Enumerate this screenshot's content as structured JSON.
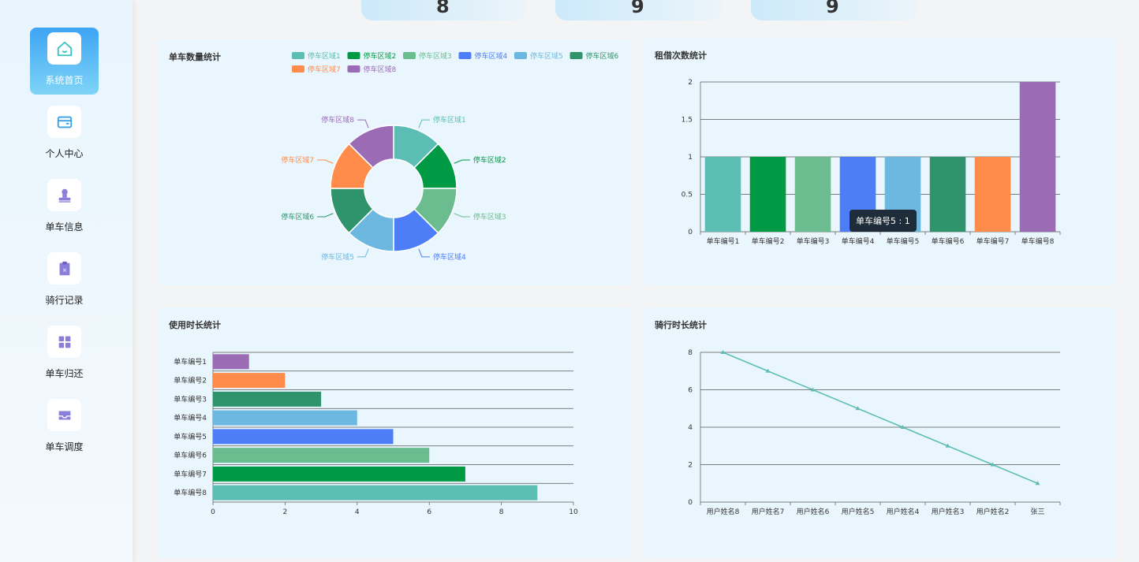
{
  "sidebar": {
    "items": [
      {
        "label": "系统首页",
        "icon": "home-icon",
        "active": true
      },
      {
        "label": "个人中心",
        "icon": "wallet-icon",
        "active": false
      },
      {
        "label": "单车信息",
        "icon": "stamp-icon",
        "active": false
      },
      {
        "label": "骑行记录",
        "icon": "clipboard-icon",
        "active": false
      },
      {
        "label": "单车归还",
        "icon": "grid-icon",
        "active": false
      },
      {
        "label": "单车调度",
        "icon": "inbox-icon",
        "active": false
      }
    ]
  },
  "top_stats": [
    "8",
    "9",
    "9"
  ],
  "colors": {
    "primary": "#5bbdb4",
    "palette": [
      "#5bbdb4",
      "#009a44",
      "#6bbd8f",
      "#4d7ef7",
      "#6cb8e0",
      "#2f946c",
      "#ff8c4b",
      "#9b6bb6"
    ]
  },
  "tooltip": {
    "label": "单车编号5 : 1"
  },
  "chart_data": [
    {
      "id": "pie",
      "type": "pie",
      "title": "单车数量统计",
      "categories": [
        "停车区域1",
        "停车区域2",
        "停车区域3",
        "停车区域4",
        "停车区域5",
        "停车区域6",
        "停车区域7",
        "停车区域8"
      ],
      "values": [
        1,
        1,
        1,
        1,
        1,
        1,
        1,
        1
      ],
      "legend": "top-right"
    },
    {
      "id": "bar-v",
      "type": "bar",
      "title": "租借次数统计",
      "categories": [
        "单车编号1",
        "单车编号2",
        "单车编号3",
        "单车编号4",
        "单车编号5",
        "单车编号6",
        "单车编号7",
        "单车编号8"
      ],
      "values": [
        1,
        1,
        1,
        1,
        1,
        1,
        1,
        2
      ],
      "ylim": [
        0,
        2
      ],
      "yticks": [
        "0",
        "0.5",
        "1",
        "1.5",
        "2"
      ]
    },
    {
      "id": "bar-h",
      "type": "bar",
      "orientation": "horizontal",
      "title": "使用时长统计",
      "categories": [
        "单车编号1",
        "单车编号2",
        "单车编号3",
        "单车编号4",
        "单车编号5",
        "单车编号6",
        "单车编号7",
        "单车编号8"
      ],
      "values": [
        1,
        2,
        3,
        4,
        5,
        6,
        7,
        9
      ],
      "xlim": [
        0,
        10
      ],
      "xticks": [
        "0",
        "2",
        "4",
        "6",
        "8",
        "10"
      ]
    },
    {
      "id": "line",
      "type": "line",
      "title": "骑行时长统计",
      "categories": [
        "用户姓名8",
        "用户姓名7",
        "用户姓名6",
        "用户姓名5",
        "用户姓名4",
        "用户姓名3",
        "用户姓名2",
        "张三"
      ],
      "values": [
        8,
        7,
        6,
        5,
        4,
        3,
        2,
        1
      ],
      "ylim": [
        0,
        8
      ],
      "yticks": [
        "0",
        "2",
        "4",
        "6",
        "8"
      ]
    }
  ]
}
